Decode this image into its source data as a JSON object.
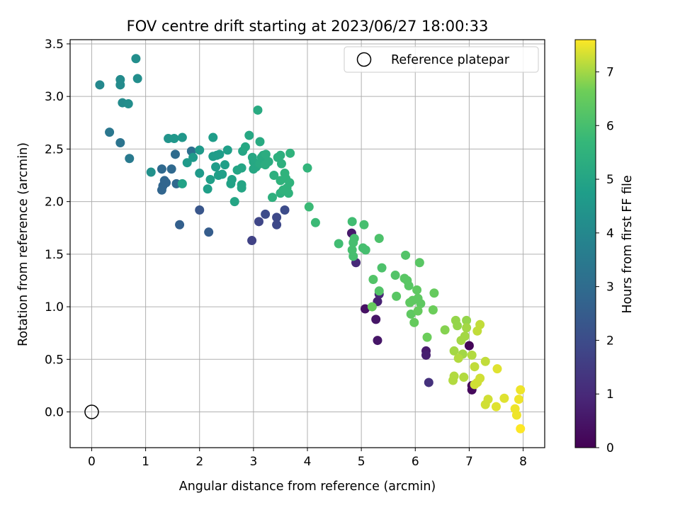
{
  "chart_data": {
    "type": "scatter",
    "title": "FOV centre drift starting at 2023/06/27 18:00:33",
    "xlabel": "Angular distance from reference (arcmin)",
    "ylabel": "Rotation from reference (arcmin)",
    "xlim": [
      -0.4,
      8.4
    ],
    "ylim": [
      -0.34,
      3.54
    ],
    "xticks": [
      0,
      1,
      2,
      3,
      4,
      5,
      6,
      7,
      8
    ],
    "yticks": [
      0.0,
      0.5,
      1.0,
      1.5,
      2.0,
      2.5,
      3.0,
      3.5
    ],
    "grid": true,
    "legend": {
      "placement": "top-right",
      "entries": [
        "Reference platepar"
      ]
    },
    "reference_point": {
      "x": 0,
      "y": 0
    },
    "colorbar": {
      "label": "Hours from first FF file",
      "min": 0,
      "max": 7.6,
      "ticks": [
        0,
        1,
        2,
        3,
        4,
        5,
        6,
        7
      ],
      "colormap": "viridis"
    },
    "points": [
      [
        7.0,
        0.63,
        0.1
      ],
      [
        7.05,
        0.25,
        0.1
      ],
      [
        7.05,
        0.21,
        0.2
      ],
      [
        5.07,
        0.98,
        0.4
      ],
      [
        5.27,
        0.88,
        0.5
      ],
      [
        5.3,
        0.68,
        0.5
      ],
      [
        4.82,
        1.7,
        0.6
      ],
      [
        6.2,
        0.58,
        0.6
      ],
      [
        6.2,
        0.54,
        0.7
      ],
      [
        5.3,
        1.05,
        0.8
      ],
      [
        5.33,
        1.12,
        0.9
      ],
      [
        4.9,
        1.42,
        1.0
      ],
      [
        6.25,
        0.28,
        1.2
      ],
      [
        2.97,
        1.63,
        1.7
      ],
      [
        3.1,
        1.81,
        1.8
      ],
      [
        3.43,
        1.78,
        1.9
      ],
      [
        3.43,
        1.85,
        1.9
      ],
      [
        3.22,
        1.88,
        2.0
      ],
      [
        3.58,
        1.92,
        2.0
      ],
      [
        2.0,
        1.92,
        2.3
      ],
      [
        2.17,
        1.71,
        2.5
      ],
      [
        1.63,
        1.78,
        2.6
      ],
      [
        1.3,
        2.11,
        2.8
      ],
      [
        1.32,
        2.15,
        2.8
      ],
      [
        1.35,
        2.2,
        2.8
      ],
      [
        1.38,
        2.18,
        2.8
      ],
      [
        1.57,
        2.17,
        2.9
      ],
      [
        1.3,
        2.31,
        2.9
      ],
      [
        1.48,
        2.31,
        2.9
      ],
      [
        1.55,
        2.45,
        3.0
      ],
      [
        1.85,
        2.48,
        3.1
      ],
      [
        0.53,
        2.56,
        3.3
      ],
      [
        0.33,
        2.66,
        3.4
      ],
      [
        0.7,
        2.41,
        3.5
      ],
      [
        0.15,
        3.11,
        4.0
      ],
      [
        0.53,
        3.16,
        4.1
      ],
      [
        0.53,
        3.11,
        4.1
      ],
      [
        0.57,
        2.94,
        4.1
      ],
      [
        0.68,
        2.93,
        4.2
      ],
      [
        0.82,
        3.36,
        4.2
      ],
      [
        0.85,
        3.17,
        4.2
      ],
      [
        1.1,
        2.28,
        4.3
      ],
      [
        1.42,
        2.6,
        4.4
      ],
      [
        1.53,
        2.6,
        4.5
      ],
      [
        1.68,
        2.61,
        4.5
      ],
      [
        1.88,
        2.42,
        4.6
      ],
      [
        1.77,
        2.37,
        4.6
      ],
      [
        2.0,
        2.49,
        4.6
      ],
      [
        2.0,
        2.27,
        4.6
      ],
      [
        2.25,
        2.61,
        4.7
      ],
      [
        2.25,
        2.43,
        4.7
      ],
      [
        2.32,
        2.44,
        4.7
      ],
      [
        2.37,
        2.45,
        4.7
      ],
      [
        2.3,
        2.33,
        4.7
      ],
      [
        2.35,
        2.25,
        4.8
      ],
      [
        2.2,
        2.21,
        4.8
      ],
      [
        2.15,
        2.12,
        4.8
      ],
      [
        2.42,
        2.26,
        4.8
      ],
      [
        2.47,
        2.35,
        4.8
      ],
      [
        2.52,
        2.49,
        4.8
      ],
      [
        2.6,
        2.21,
        4.9
      ],
      [
        2.58,
        2.17,
        4.9
      ],
      [
        1.68,
        2.17,
        4.9
      ],
      [
        2.65,
        2.0,
        5.0
      ],
      [
        2.7,
        2.3,
        5.0
      ],
      [
        2.78,
        2.16,
        5.0
      ],
      [
        2.78,
        2.13,
        5.0
      ],
      [
        2.78,
        2.32,
        5.0
      ],
      [
        2.8,
        2.48,
        5.0
      ],
      [
        2.85,
        2.52,
        5.1
      ],
      [
        2.92,
        2.63,
        5.1
      ],
      [
        2.98,
        2.42,
        5.1
      ],
      [
        3.0,
        2.38,
        5.1
      ],
      [
        3.0,
        2.31,
        5.1
      ],
      [
        3.05,
        2.33,
        5.1
      ],
      [
        3.08,
        2.87,
        5.2
      ],
      [
        3.12,
        2.57,
        5.2
      ],
      [
        3.12,
        2.36,
        5.2
      ],
      [
        3.15,
        2.42,
        5.2
      ],
      [
        3.18,
        2.44,
        5.2
      ],
      [
        3.23,
        2.45,
        5.3
      ],
      [
        3.28,
        2.38,
        5.3
      ],
      [
        3.22,
        2.35,
        5.3
      ],
      [
        3.35,
        2.04,
        5.4
      ],
      [
        3.38,
        2.25,
        5.4
      ],
      [
        3.45,
        2.42,
        5.4
      ],
      [
        3.5,
        2.44,
        5.4
      ],
      [
        3.52,
        2.36,
        5.4
      ],
      [
        3.5,
        2.08,
        5.4
      ],
      [
        3.55,
        2.11,
        5.5
      ],
      [
        3.58,
        2.27,
        5.5
      ],
      [
        3.6,
        2.22,
        5.5
      ],
      [
        3.62,
        2.13,
        5.5
      ],
      [
        3.65,
        2.08,
        5.5
      ],
      [
        3.5,
        2.2,
        5.5
      ],
      [
        3.67,
        2.18,
        5.5
      ],
      [
        3.68,
        2.46,
        5.5
      ],
      [
        4.0,
        2.32,
        5.6
      ],
      [
        4.03,
        1.95,
        5.8
      ],
      [
        4.15,
        1.8,
        5.8
      ],
      [
        4.58,
        1.6,
        5.9
      ],
      [
        4.83,
        1.81,
        5.9
      ],
      [
        4.85,
        1.61,
        6.0
      ],
      [
        4.83,
        1.54,
        6.0
      ],
      [
        4.85,
        1.48,
        6.0
      ],
      [
        4.87,
        1.65,
        6.0
      ],
      [
        5.03,
        1.56,
        6.0
      ],
      [
        5.05,
        1.78,
        6.0
      ],
      [
        5.08,
        1.54,
        6.0
      ],
      [
        5.33,
        1.65,
        6.1
      ],
      [
        5.38,
        1.37,
        6.1
      ],
      [
        5.22,
        1.26,
        6.2
      ],
      [
        5.33,
        1.15,
        6.2
      ],
      [
        5.63,
        1.3,
        6.2
      ],
      [
        5.82,
        1.49,
        6.2
      ],
      [
        5.8,
        1.27,
        6.3
      ],
      [
        5.85,
        1.25,
        6.3
      ],
      [
        5.88,
        1.2,
        6.3
      ],
      [
        5.65,
        1.1,
        6.3
      ],
      [
        6.08,
        1.42,
        6.3
      ],
      [
        6.03,
        1.16,
        6.4
      ],
      [
        5.95,
        1.06,
        6.4
      ],
      [
        6.05,
        1.08,
        6.4
      ],
      [
        6.1,
        1.03,
        6.4
      ],
      [
        5.9,
        1.04,
        6.4
      ],
      [
        5.92,
        0.93,
        6.4
      ],
      [
        5.98,
        0.85,
        6.5
      ],
      [
        6.05,
        0.96,
        6.5
      ],
      [
        5.2,
        1.0,
        6.5
      ],
      [
        6.35,
        1.13,
        6.5
      ],
      [
        6.33,
        0.97,
        6.6
      ],
      [
        6.22,
        0.71,
        6.6
      ],
      [
        6.55,
        0.78,
        6.8
      ],
      [
        6.75,
        0.87,
        6.9
      ],
      [
        6.78,
        0.82,
        6.9
      ],
      [
        6.95,
        0.87,
        6.9
      ],
      [
        6.95,
        0.8,
        7.0
      ],
      [
        6.92,
        0.72,
        7.0
      ],
      [
        6.85,
        0.68,
        7.0
      ],
      [
        6.72,
        0.58,
        7.0
      ],
      [
        6.88,
        0.55,
        7.0
      ],
      [
        7.05,
        0.54,
        7.1
      ],
      [
        6.8,
        0.51,
        7.1
      ],
      [
        6.72,
        0.34,
        7.1
      ],
      [
        6.7,
        0.3,
        7.1
      ],
      [
        6.9,
        0.33,
        7.1
      ],
      [
        7.2,
        0.83,
        7.2
      ],
      [
        7.15,
        0.77,
        7.2
      ],
      [
        7.1,
        0.43,
        7.2
      ],
      [
        7.3,
        0.48,
        7.2
      ],
      [
        7.2,
        0.32,
        7.3
      ],
      [
        7.15,
        0.28,
        7.3
      ],
      [
        7.1,
        0.26,
        7.3
      ],
      [
        7.35,
        0.12,
        7.3
      ],
      [
        7.3,
        0.07,
        7.3
      ],
      [
        7.52,
        0.41,
        7.4
      ],
      [
        7.5,
        0.05,
        7.4
      ],
      [
        7.65,
        0.13,
        7.4
      ],
      [
        7.85,
        0.03,
        7.5
      ],
      [
        7.88,
        -0.03,
        7.5
      ],
      [
        7.92,
        0.12,
        7.5
      ],
      [
        7.95,
        0.21,
        7.5
      ],
      [
        7.95,
        -0.16,
        7.6
      ]
    ]
  }
}
